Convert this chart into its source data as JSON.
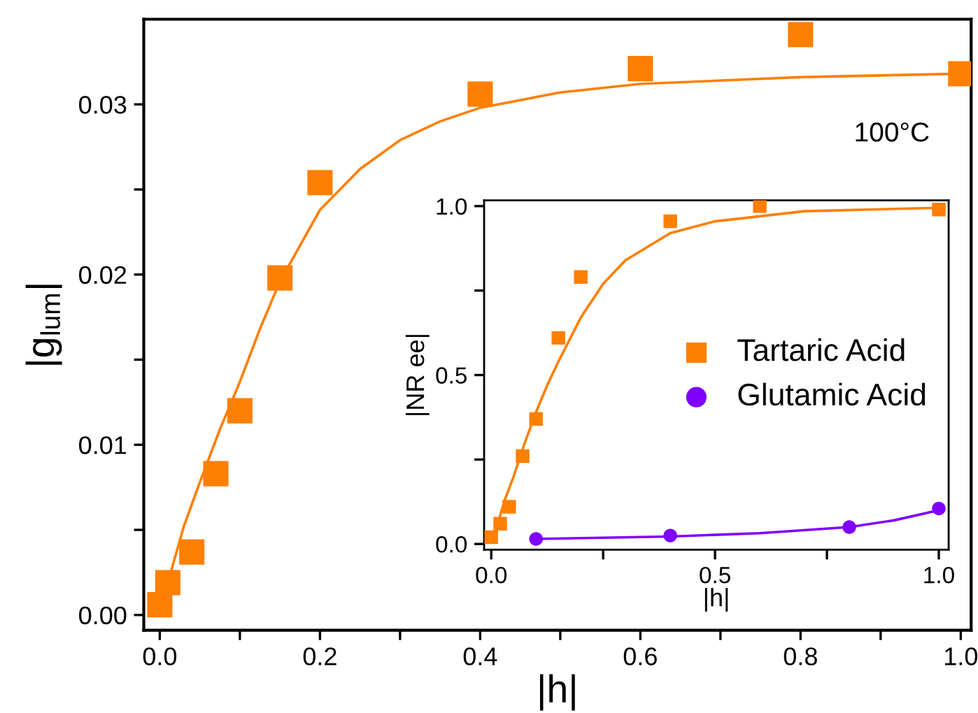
{
  "chart_data": [
    {
      "type": "scatter",
      "xlabel": "|h|",
      "ylabel": "|g$_{lum}$|",
      "annotations": [
        "100°C"
      ],
      "grid": false,
      "legend": false,
      "xlim": [
        -0.02,
        1.013
      ],
      "ylim": [
        -0.0009,
        0.035
      ],
      "xticks": [
        {
          "value": 0,
          "label": "0.0"
        },
        {
          "value": 0.1,
          "label": null
        },
        {
          "value": 0.2,
          "label": "0.2"
        },
        {
          "value": 0.3,
          "label": null
        },
        {
          "value": 0.4,
          "label": "0.4"
        },
        {
          "value": 0.5,
          "label": null
        },
        {
          "value": 0.6,
          "label": "0.6"
        },
        {
          "value": 0.7,
          "label": null
        },
        {
          "value": 0.8,
          "label": "0.8"
        },
        {
          "value": 0.9,
          "label": null
        },
        {
          "value": 1.0,
          "label": "1.0"
        }
      ],
      "yticks": [
        {
          "value": 0,
          "label": "0.00"
        },
        {
          "value": 0.005,
          "label": null
        },
        0.01,
        {
          "value": 0.015,
          "label": null
        },
        0.02,
        {
          "value": 0.025,
          "label": null
        },
        0.03
      ],
      "series": [
        {
          "marker": "square",
          "color": "#ff7f00",
          "x": [
            0.0,
            0.01,
            0.04,
            0.07,
            0.1,
            0.15,
            0.2,
            0.4,
            0.6,
            0.8,
            1.0
          ],
          "values": [
            0.0006,
            0.0019,
            0.0037,
            0.0083,
            0.012,
            0.0198,
            0.0254,
            0.0306,
            0.0321,
            0.0341,
            0.0318
          ]
        },
        {
          "type": "line",
          "color": "#ff7f00",
          "x": [
            0.01,
            0.03,
            0.05,
            0.075,
            0.1,
            0.125,
            0.15,
            0.2,
            0.25,
            0.3,
            0.35,
            0.4,
            0.5,
            0.6,
            0.8,
            1.0
          ],
          "values": [
            0.0019,
            0.0052,
            0.0078,
            0.0109,
            0.0137,
            0.0168,
            0.0196,
            0.0238,
            0.0262,
            0.0279,
            0.029,
            0.0298,
            0.0307,
            0.0312,
            0.0316,
            0.0318
          ]
        }
      ]
    },
    {
      "type": "scatter",
      "xlabel": "|h|",
      "ylabel": "|NR ee|",
      "grid": false,
      "legend": "right",
      "xlim": [
        -0.016,
        1.022
      ],
      "ylim": [
        -0.017,
        1.017
      ],
      "xticks": [
        {
          "value": 0,
          "label": "0.0"
        },
        {
          "value": 0.25,
          "label": null
        },
        0.5,
        {
          "value": 0.75,
          "label": null
        },
        {
          "value": 1.0,
          "label": "1.0"
        }
      ],
      "yticks": [
        {
          "value": 0,
          "label": "0.0"
        },
        {
          "value": 0.25,
          "label": null
        },
        0.5,
        {
          "value": 0.75,
          "label": null
        },
        {
          "value": 1.0,
          "label": "1.0"
        }
      ],
      "series": [
        {
          "name": "Tartaric Acid",
          "marker": "square",
          "color": "#ff7f00",
          "x": [
            0.0,
            0.02,
            0.04,
            0.07,
            0.1,
            0.15,
            0.2,
            0.4,
            0.6,
            1.0
          ],
          "values": [
            0.02,
            0.06,
            0.11,
            0.26,
            0.37,
            0.61,
            0.79,
            0.955,
            1.0,
            0.99
          ]
        },
        {
          "name": "Glutamic Acid",
          "marker": "circle",
          "color": "#8000ff",
          "x": [
            0.1,
            0.4,
            0.8,
            1.0
          ],
          "values": [
            0.015,
            0.025,
            0.05,
            0.105
          ]
        },
        {
          "type": "line",
          "color": "#ff7f00",
          "x": [
            0.01,
            0.03,
            0.05,
            0.075,
            0.1,
            0.125,
            0.15,
            0.2,
            0.25,
            0.3,
            0.4,
            0.5,
            0.7,
            1.0
          ],
          "values": [
            0.04,
            0.13,
            0.2,
            0.3,
            0.39,
            0.47,
            0.54,
            0.67,
            0.77,
            0.84,
            0.92,
            0.955,
            0.985,
            0.995
          ]
        },
        {
          "type": "line",
          "color": "#8000ff",
          "x": [
            0.1,
            0.4,
            0.6,
            0.8,
            0.9,
            1.0
          ],
          "values": [
            0.015,
            0.022,
            0.032,
            0.05,
            0.07,
            0.1
          ]
        }
      ]
    }
  ]
}
